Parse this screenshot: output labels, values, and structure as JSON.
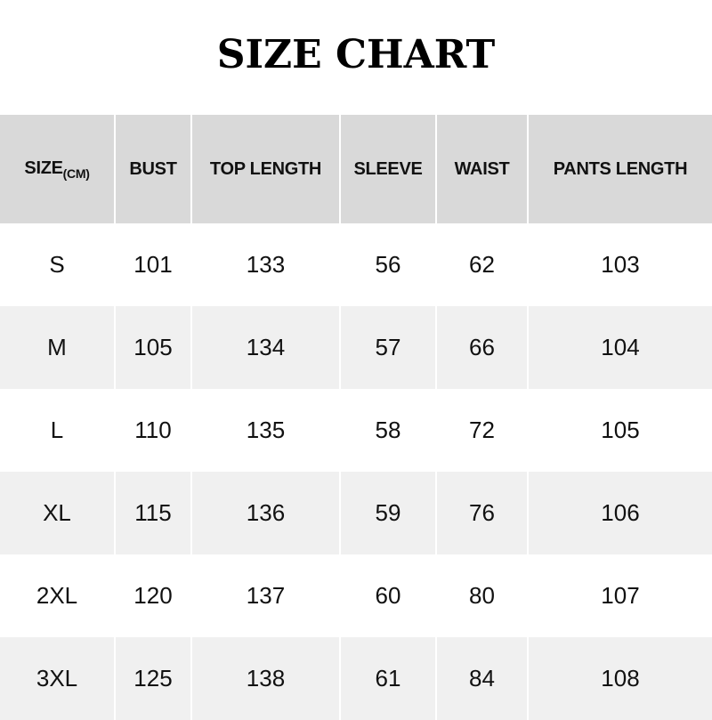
{
  "title": "SIZE CHART",
  "headers": {
    "size": "SIZE",
    "size_unit": "(CM)",
    "bust": "BUST",
    "top_length": "TOP LENGTH",
    "sleeve": "SLEEVE",
    "waist": "WAIST",
    "pants_length": "PANTS LENGTH"
  },
  "rows": [
    {
      "size": "S",
      "bust": "101",
      "top_length": "133",
      "sleeve": "56",
      "waist": "62",
      "pants_length": "103"
    },
    {
      "size": "M",
      "bust": "105",
      "top_length": "134",
      "sleeve": "57",
      "waist": "66",
      "pants_length": "104"
    },
    {
      "size": "L",
      "bust": "110",
      "top_length": "135",
      "sleeve": "58",
      "waist": "72",
      "pants_length": "105"
    },
    {
      "size": "XL",
      "bust": "115",
      "top_length": "136",
      "sleeve": "59",
      "waist": "76",
      "pants_length": "106"
    },
    {
      "size": "2XL",
      "bust": "120",
      "top_length": "137",
      "sleeve": "60",
      "waist": "80",
      "pants_length": "107"
    },
    {
      "size": "3XL",
      "bust": "125",
      "top_length": "138",
      "sleeve": "61",
      "waist": "84",
      "pants_length": "108"
    }
  ]
}
